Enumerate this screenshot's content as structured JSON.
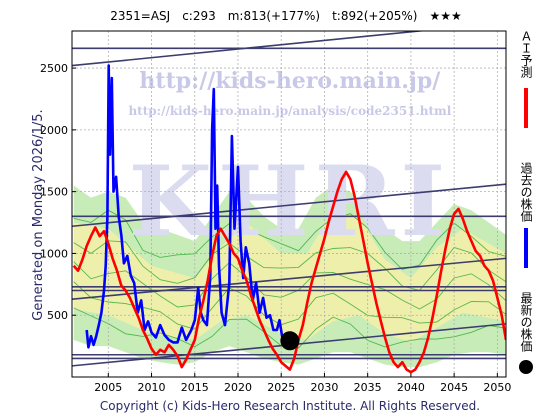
{
  "header": {
    "title": "2351=ASJ　c:293　m:813(+177%)　t:892(+205%)　★★★"
  },
  "side_text": {
    "generated": "Generated on Monday 2026/1/5."
  },
  "watermark": {
    "url_main": "http://kids-hero.main.jp/",
    "url_sub": "http://kids-hero.main.jp/analysis/code2351.html",
    "logo": "KHRI"
  },
  "footer": {
    "copyright": "Copyright (c) Kids-Hero Research Institute. All Rights Reserved."
  },
  "legend": {
    "items": [
      {
        "label": "ＡＩ予測",
        "color": "#ff0000",
        "shape": "line"
      },
      {
        "label": "過去の株価",
        "color": "#0000ff",
        "shape": "line"
      },
      {
        "label": "最新の株価",
        "color": "#000000",
        "shape": "dot"
      }
    ]
  },
  "chart_data": {
    "type": "line",
    "title": "2351=ASJ　c:293　m:813(+177%)　t:892(+205%)　★★★",
    "xlabel": "",
    "ylabel": "",
    "xlim": [
      2000.8,
      2051.0
    ],
    "ylim": [
      0,
      2800
    ],
    "x_ticks": [
      2005,
      2010,
      2015,
      2020,
      2025,
      2030,
      2035,
      2040,
      2045,
      2050
    ],
    "y_ticks": [
      500,
      1000,
      1500,
      2000,
      2500
    ],
    "grid": true,
    "colors": {
      "prediction": "#ff0000",
      "history": "#0000ff",
      "latest": "#000000",
      "band_green": "#b4e6a0",
      "band_yellow": "#f5f0a8",
      "green_lines": "#33aa33",
      "trend_lines": "#3c3c6e"
    },
    "latest_point": {
      "x": 2026.0,
      "y": 293
    },
    "series": [
      {
        "name": "過去の株価",
        "role": "history",
        "points": [
          [
            2002.5,
            380
          ],
          [
            2002.7,
            240
          ],
          [
            2003.0,
            330
          ],
          [
            2003.3,
            260
          ],
          [
            2003.6,
            330
          ],
          [
            2003.9,
            420
          ],
          [
            2004.2,
            520
          ],
          [
            2004.5,
            700
          ],
          [
            2004.7,
            900
          ],
          [
            2004.9,
            1300
          ],
          [
            2005.05,
            2520
          ],
          [
            2005.2,
            1800
          ],
          [
            2005.4,
            2420
          ],
          [
            2005.6,
            1500
          ],
          [
            2005.9,
            1620
          ],
          [
            2006.2,
            1300
          ],
          [
            2006.5,
            1150
          ],
          [
            2006.8,
            920
          ],
          [
            2007.2,
            980
          ],
          [
            2007.6,
            820
          ],
          [
            2008.0,
            760
          ],
          [
            2008.4,
            520
          ],
          [
            2008.8,
            620
          ],
          [
            2009.2,
            380
          ],
          [
            2009.6,
            450
          ],
          [
            2010.0,
            360
          ],
          [
            2010.5,
            320
          ],
          [
            2011.0,
            420
          ],
          [
            2011.5,
            340
          ],
          [
            2012.0,
            300
          ],
          [
            2012.5,
            280
          ],
          [
            2013.0,
            280
          ],
          [
            2013.5,
            400
          ],
          [
            2014.0,
            300
          ],
          [
            2014.6,
            380
          ],
          [
            2015.0,
            460
          ],
          [
            2015.4,
            720
          ],
          [
            2015.7,
            520
          ],
          [
            2016.0,
            460
          ],
          [
            2016.4,
            420
          ],
          [
            2016.8,
            820
          ],
          [
            2017.0,
            2000
          ],
          [
            2017.2,
            2330
          ],
          [
            2017.4,
            1200
          ],
          [
            2017.6,
            1550
          ],
          [
            2017.8,
            900
          ],
          [
            2018.1,
            520
          ],
          [
            2018.5,
            420
          ],
          [
            2019.0,
            760
          ],
          [
            2019.3,
            1950
          ],
          [
            2019.6,
            1200
          ],
          [
            2020.0,
            1700
          ],
          [
            2020.3,
            1100
          ],
          [
            2020.6,
            800
          ],
          [
            2020.9,
            1050
          ],
          [
            2021.3,
            920
          ],
          [
            2021.7,
            620
          ],
          [
            2022.1,
            760
          ],
          [
            2022.5,
            520
          ],
          [
            2022.9,
            640
          ],
          [
            2023.3,
            480
          ],
          [
            2023.7,
            500
          ],
          [
            2024.1,
            380
          ],
          [
            2024.5,
            380
          ],
          [
            2024.8,
            460
          ],
          [
            2025.1,
            330
          ],
          [
            2025.5,
            300
          ],
          [
            2026.0,
            293
          ]
        ]
      },
      {
        "name": "ＡＩ予測",
        "role": "prediction",
        "points": [
          [
            2001.0,
            900
          ],
          [
            2001.5,
            860
          ],
          [
            2002.0,
            950
          ],
          [
            2002.5,
            1060
          ],
          [
            2003.0,
            1140
          ],
          [
            2003.5,
            1210
          ],
          [
            2004.0,
            1140
          ],
          [
            2004.5,
            1180
          ],
          [
            2005.0,
            1080
          ],
          [
            2005.5,
            960
          ],
          [
            2006.0,
            860
          ],
          [
            2006.5,
            740
          ],
          [
            2007.0,
            700
          ],
          [
            2007.5,
            640
          ],
          [
            2008.0,
            560
          ],
          [
            2008.5,
            480
          ],
          [
            2009.0,
            380
          ],
          [
            2009.5,
            310
          ],
          [
            2010.0,
            230
          ],
          [
            2010.5,
            180
          ],
          [
            2011.0,
            220
          ],
          [
            2011.5,
            200
          ],
          [
            2012.0,
            260
          ],
          [
            2012.5,
            220
          ],
          [
            2013.0,
            170
          ],
          [
            2013.5,
            80
          ],
          [
            2014.0,
            140
          ],
          [
            2014.5,
            220
          ],
          [
            2015.0,
            300
          ],
          [
            2015.5,
            480
          ],
          [
            2016.0,
            620
          ],
          [
            2016.5,
            780
          ],
          [
            2017.0,
            980
          ],
          [
            2017.5,
            1140
          ],
          [
            2018.0,
            1200
          ],
          [
            2018.5,
            1140
          ],
          [
            2019.0,
            1080
          ],
          [
            2019.5,
            1000
          ],
          [
            2020.0,
            960
          ],
          [
            2020.5,
            860
          ],
          [
            2021.0,
            780
          ],
          [
            2021.5,
            660
          ],
          [
            2022.0,
            560
          ],
          [
            2022.5,
            460
          ],
          [
            2023.0,
            380
          ],
          [
            2023.5,
            300
          ],
          [
            2024.0,
            230
          ],
          [
            2024.5,
            180
          ],
          [
            2025.0,
            120
          ],
          [
            2025.5,
            90
          ],
          [
            2026.0,
            60
          ],
          [
            2026.5,
            150
          ],
          [
            2027.0,
            300
          ],
          [
            2027.5,
            420
          ],
          [
            2028.0,
            600
          ],
          [
            2028.5,
            760
          ],
          [
            2029.0,
            880
          ],
          [
            2029.5,
            1000
          ],
          [
            2030.0,
            1120
          ],
          [
            2030.5,
            1260
          ],
          [
            2031.0,
            1380
          ],
          [
            2031.5,
            1500
          ],
          [
            2032.0,
            1600
          ],
          [
            2032.5,
            1660
          ],
          [
            2033.0,
            1600
          ],
          [
            2033.5,
            1460
          ],
          [
            2034.0,
            1280
          ],
          [
            2034.5,
            1100
          ],
          [
            2035.0,
            920
          ],
          [
            2035.5,
            760
          ],
          [
            2036.0,
            600
          ],
          [
            2036.5,
            460
          ],
          [
            2037.0,
            320
          ],
          [
            2037.5,
            200
          ],
          [
            2038.0,
            120
          ],
          [
            2038.5,
            80
          ],
          [
            2039.0,
            120
          ],
          [
            2039.5,
            60
          ],
          [
            2040.0,
            40
          ],
          [
            2040.5,
            60
          ],
          [
            2041.0,
            120
          ],
          [
            2041.5,
            200
          ],
          [
            2042.0,
            320
          ],
          [
            2042.5,
            480
          ],
          [
            2043.0,
            660
          ],
          [
            2043.5,
            860
          ],
          [
            2044.0,
            1040
          ],
          [
            2044.5,
            1200
          ],
          [
            2045.0,
            1320
          ],
          [
            2045.5,
            1360
          ],
          [
            2046.0,
            1280
          ],
          [
            2046.5,
            1180
          ],
          [
            2047.0,
            1100
          ],
          [
            2047.5,
            1020
          ],
          [
            2048.0,
            980
          ],
          [
            2048.5,
            900
          ],
          [
            2049.0,
            860
          ],
          [
            2049.5,
            780
          ],
          [
            2050.0,
            640
          ],
          [
            2050.5,
            500
          ],
          [
            2051.0,
            300
          ]
        ]
      }
    ],
    "band_green": {
      "upper": [
        [
          2001.0,
          1550
        ],
        [
          2003.0,
          1450
        ],
        [
          2005.0,
          1500
        ],
        [
          2007.0,
          1450
        ],
        [
          2009.0,
          1250
        ],
        [
          2011.0,
          1200
        ],
        [
          2013.0,
          1150
        ],
        [
          2015.0,
          1100
        ],
        [
          2017.0,
          1300
        ],
        [
          2019.0,
          1500
        ],
        [
          2021.0,
          1450
        ],
        [
          2023.0,
          1300
        ],
        [
          2025.0,
          1200
        ],
        [
          2027.0,
          1200
        ],
        [
          2029.0,
          1450
        ],
        [
          2031.0,
          1550
        ],
        [
          2033.0,
          1500
        ],
        [
          2035.0,
          1350
        ],
        [
          2037.0,
          1200
        ],
        [
          2039.0,
          1100
        ],
        [
          2041.0,
          1100
        ],
        [
          2043.0,
          1250
        ],
        [
          2045.0,
          1400
        ],
        [
          2047.0,
          1350
        ],
        [
          2049.0,
          1250
        ],
        [
          2051.0,
          1150
        ]
      ],
      "lower": [
        [
          2001.0,
          300
        ],
        [
          2003.0,
          250
        ],
        [
          2005.0,
          250
        ],
        [
          2007.0,
          200
        ],
        [
          2009.0,
          150
        ],
        [
          2011.0,
          120
        ],
        [
          2013.0,
          100
        ],
        [
          2015.0,
          120
        ],
        [
          2017.0,
          200
        ],
        [
          2019.0,
          250
        ],
        [
          2021.0,
          200
        ],
        [
          2023.0,
          150
        ],
        [
          2025.0,
          120
        ],
        [
          2027.0,
          100
        ],
        [
          2029.0,
          150
        ],
        [
          2031.0,
          200
        ],
        [
          2033.0,
          200
        ],
        [
          2035.0,
          150
        ],
        [
          2037.0,
          100
        ],
        [
          2039.0,
          80
        ],
        [
          2041.0,
          80
        ],
        [
          2043.0,
          120
        ],
        [
          2045.0,
          180
        ],
        [
          2047.0,
          200
        ],
        [
          2049.0,
          200
        ],
        [
          2051.0,
          180
        ]
      ]
    },
    "band_yellow": {
      "upper": [
        [
          2001.0,
          1250
        ],
        [
          2005.0,
          1200
        ],
        [
          2010.0,
          900
        ],
        [
          2015.0,
          800
        ],
        [
          2018.0,
          1050
        ],
        [
          2021.0,
          1250
        ],
        [
          2025.0,
          1000
        ],
        [
          2028.0,
          1000
        ],
        [
          2031.0,
          1350
        ],
        [
          2034.0,
          1300
        ],
        [
          2037.0,
          950
        ],
        [
          2040.0,
          800
        ],
        [
          2043.0,
          1050
        ],
        [
          2046.0,
          1200
        ],
        [
          2051.0,
          1000
        ]
      ],
      "lower": [
        [
          2001.0,
          550
        ],
        [
          2005.0,
          500
        ],
        [
          2010.0,
          350
        ],
        [
          2015.0,
          300
        ],
        [
          2018.0,
          450
        ],
        [
          2021.0,
          500
        ],
        [
          2025.0,
          350
        ],
        [
          2028.0,
          300
        ],
        [
          2031.0,
          450
        ],
        [
          2034.0,
          500
        ],
        [
          2037.0,
          350
        ],
        [
          2040.0,
          280
        ],
        [
          2043.0,
          400
        ],
        [
          2046.0,
          520
        ],
        [
          2051.0,
          450
        ]
      ]
    },
    "trend_lines": [
      {
        "from": [
          2000.8,
          2520
        ],
        "to": [
          2051.0,
          2870
        ]
      },
      {
        "from": [
          2000.8,
          2660
        ],
        "to": [
          2051.0,
          2660
        ]
      },
      {
        "from": [
          2000.8,
          1220
        ],
        "to": [
          2051.0,
          1560
        ]
      },
      {
        "from": [
          2000.8,
          1300
        ],
        "to": [
          2051.0,
          1300
        ]
      },
      {
        "from": [
          2000.8,
          630
        ],
        "to": [
          2051.0,
          960
        ]
      },
      {
        "from": [
          2000.8,
          730
        ],
        "to": [
          2051.0,
          730
        ]
      },
      {
        "from": [
          2000.8,
          700
        ],
        "to": [
          2051.0,
          700
        ]
      },
      {
        "from": [
          2000.8,
          90
        ],
        "to": [
          2051.0,
          430
        ]
      },
      {
        "from": [
          2000.8,
          180
        ],
        "to": [
          2051.0,
          180
        ]
      },
      {
        "from": [
          2000.8,
          150
        ],
        "to": [
          2051.0,
          150
        ]
      }
    ]
  }
}
